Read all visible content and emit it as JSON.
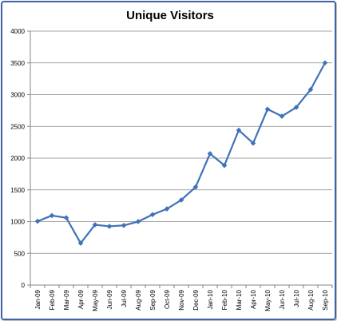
{
  "chart_data": {
    "type": "line",
    "title": "Unique Visitors",
    "xlabel": "",
    "ylabel": "",
    "ylim": [
      0,
      4000
    ],
    "yticks": [
      0,
      500,
      1000,
      1500,
      2000,
      2500,
      3000,
      3500,
      4000
    ],
    "grid": true,
    "legend": "none",
    "categories": [
      "Jan-09",
      "Feb-09",
      "Mar-09",
      "Apr-09",
      "May-09",
      "Jun-09",
      "Jul-09",
      "Aug-09",
      "Sep-09",
      "Oct-09",
      "Nov-09",
      "Dec-09",
      "Jan-10",
      "Feb-10",
      "Mar-10",
      "Apr-10",
      "May-10",
      "Jun-10",
      "Jul-10",
      "Aug-10",
      "Sep-10"
    ],
    "series": [
      {
        "values": [
          1005,
          1095,
          1060,
          660,
          950,
          925,
          940,
          1000,
          1110,
          1200,
          1340,
          1545,
          2070,
          1885,
          2440,
          2235,
          2770,
          2660,
          2800,
          3080,
          3500
        ],
        "color": "#3f72b8"
      }
    ]
  }
}
